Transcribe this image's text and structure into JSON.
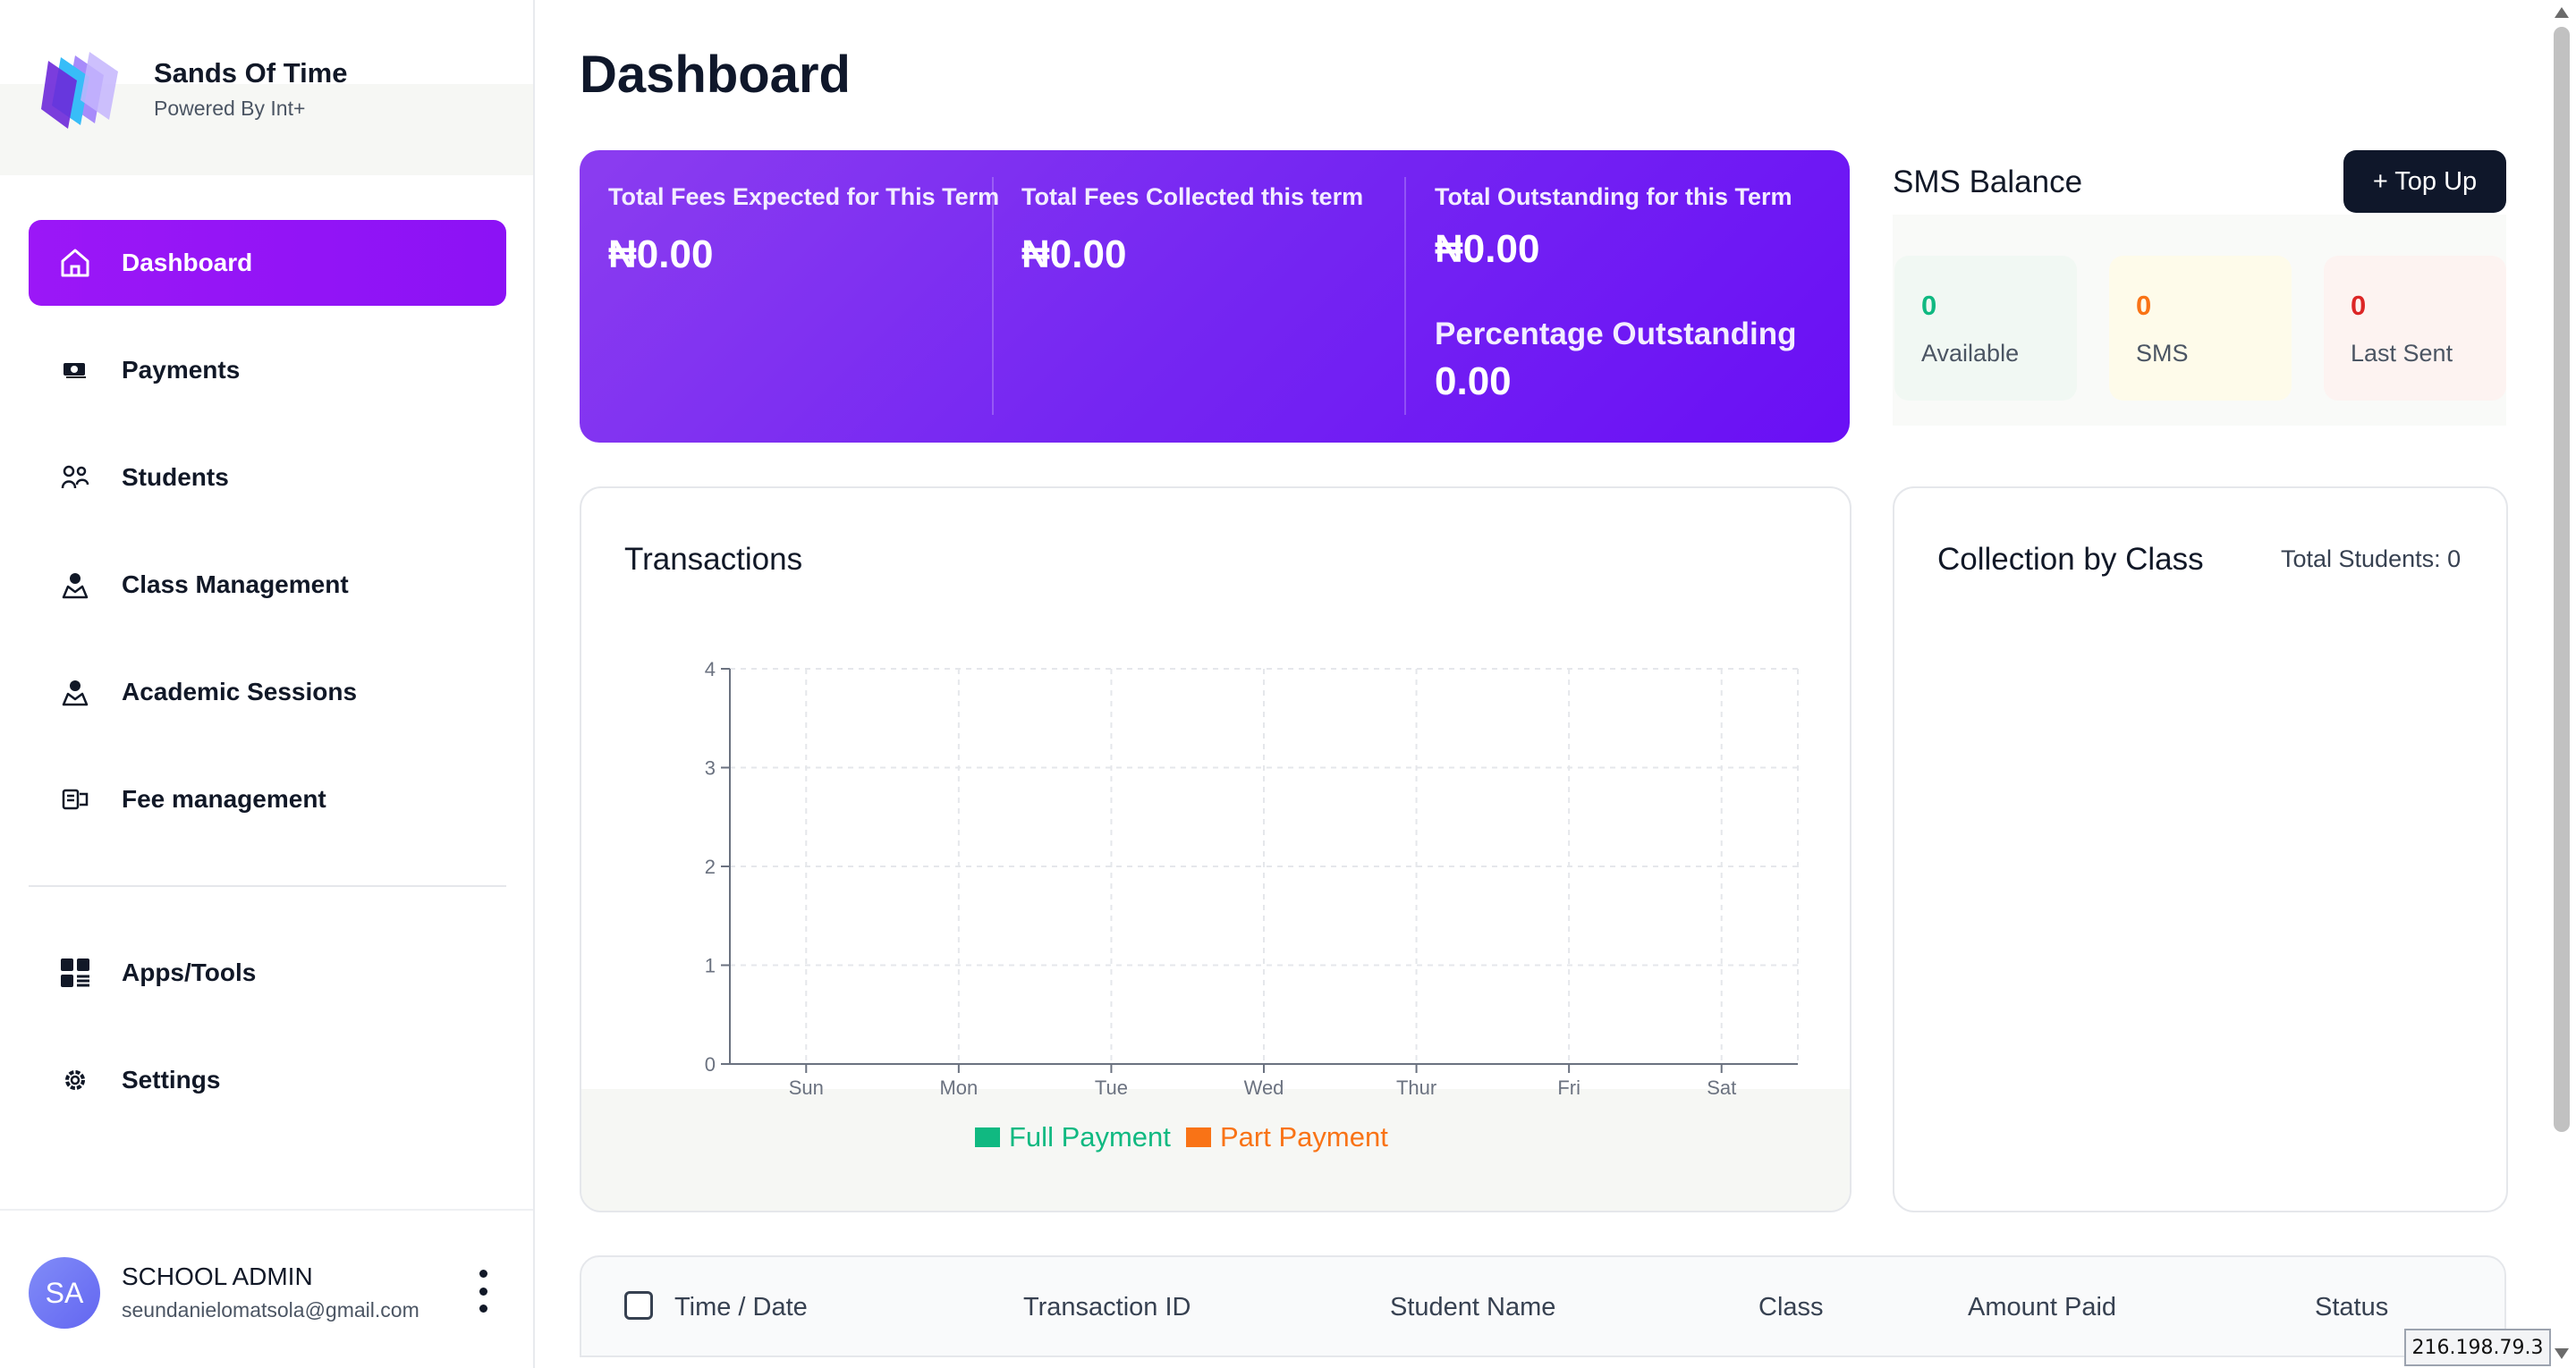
{
  "brand": {
    "name": "Sands Of Time",
    "subtitle": "Powered By Int+"
  },
  "sidebar": {
    "items": [
      {
        "label": "Dashboard",
        "icon": "home-icon",
        "active": true
      },
      {
        "label": "Payments",
        "icon": "payments-icon"
      },
      {
        "label": "Students",
        "icon": "students-icon"
      },
      {
        "label": "Class Management",
        "icon": "class-icon"
      },
      {
        "label": "Academic Sessions",
        "icon": "sessions-icon"
      },
      {
        "label": "Fee management",
        "icon": "fee-icon"
      }
    ],
    "bottom_items": [
      {
        "label": "Apps/Tools",
        "icon": "apps-icon"
      },
      {
        "label": "Settings",
        "icon": "gear-icon"
      }
    ]
  },
  "user": {
    "initials": "SA",
    "name": "SCHOOL ADMIN",
    "email": "seundanielomatsola@gmail.com"
  },
  "page": {
    "title": "Dashboard"
  },
  "fees": {
    "expected": {
      "label": "Total Fees Expected for This Term",
      "value": "₦0.00"
    },
    "collected": {
      "label": "Total Fees Collected this term",
      "value": "₦0.00"
    },
    "outstanding": {
      "label": "Total Outstanding for this Term",
      "value": "₦0.00"
    },
    "percentage": {
      "label": "Percentage Outstanding",
      "value": "0.00"
    }
  },
  "sms": {
    "title": "SMS Balance",
    "topup_label": "+ Top Up",
    "stats": [
      {
        "value": "0",
        "label": "Available",
        "color": "#10b981",
        "bg": "#f1f8f3"
      },
      {
        "value": "0",
        "label": "SMS",
        "color": "#f97316",
        "bg": "#fefbea"
      },
      {
        "value": "0",
        "label": "Last Sent",
        "color": "#dc2626",
        "bg": "#fdf3f1"
      }
    ]
  },
  "transactions": {
    "title": "Transactions",
    "legend": [
      {
        "label": "Full Payment",
        "color": "#10b981"
      },
      {
        "label": "Part Payment",
        "color": "#f97316"
      }
    ]
  },
  "chart_data": {
    "type": "bar",
    "categories": [
      "Sun",
      "Mon",
      "Tue",
      "Wed",
      "Thur",
      "Fri",
      "Sat"
    ],
    "series": [
      {
        "name": "Full Payment",
        "values": [
          0,
          0,
          0,
          0,
          0,
          0,
          0
        ]
      },
      {
        "name": "Part Payment",
        "values": [
          0,
          0,
          0,
          0,
          0,
          0,
          0
        ]
      }
    ],
    "y_ticks": [
      0,
      1,
      2,
      3,
      4
    ],
    "ylim": [
      0,
      4
    ],
    "grid": true,
    "legend_position": "bottom"
  },
  "collection": {
    "title": "Collection by Class",
    "total_students": "Total Students: 0"
  },
  "table": {
    "columns": [
      "Time / Date",
      "Transaction ID",
      "Student Name",
      "Class",
      "Amount Paid",
      "Status"
    ]
  },
  "ip": "216.198.79.3"
}
